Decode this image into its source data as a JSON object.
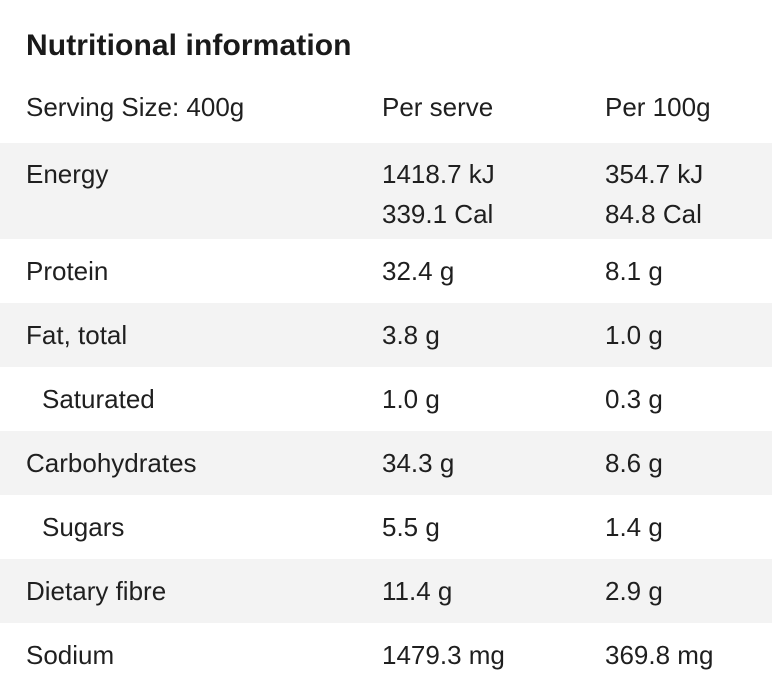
{
  "title": "Nutritional information",
  "header": {
    "serving_size": "Serving Size: 400g",
    "per_serve": "Per serve",
    "per_100g": "Per 100g"
  },
  "rows": [
    {
      "label": "Energy",
      "per_serve": [
        "1418.7 kJ",
        "339.1 Cal"
      ],
      "per_100g": [
        "354.7 kJ",
        "84.8 Cal"
      ]
    },
    {
      "label": "Protein",
      "per_serve": "32.4 g",
      "per_100g": "8.1 g"
    },
    {
      "label": "Fat, total",
      "per_serve": "3.8 g",
      "per_100g": "1.0 g"
    },
    {
      "label": "Saturated",
      "per_serve": "1.0 g",
      "per_100g": "0.3 g"
    },
    {
      "label": "Carbohydrates",
      "per_serve": "34.3 g",
      "per_100g": "8.6 g"
    },
    {
      "label": "Sugars",
      "per_serve": "5.5 g",
      "per_100g": "1.4 g"
    },
    {
      "label": "Dietary fibre",
      "per_serve": "11.4 g",
      "per_100g": "2.9 g"
    },
    {
      "label": "Sodium",
      "per_serve": "1479.3 mg",
      "per_100g": "369.8 mg"
    }
  ]
}
